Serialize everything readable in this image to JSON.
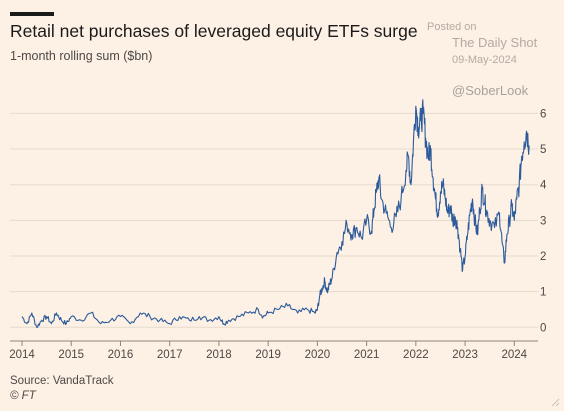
{
  "header": {
    "title": "Retail net purchases of leveraged equity ETFs surge",
    "subtitle": "1-month rolling sum ($bn)"
  },
  "watermark": {
    "posted": "Posted on",
    "brand": "The Daily Shot",
    "date": "09-May-2024",
    "handle": "@SoberLook"
  },
  "footer": {
    "source": "Source: VandaTrack",
    "credit": "© FT"
  },
  "colors": {
    "background": "#fdf1e5",
    "line": "#2c5a9a",
    "grid": "#e6dacd",
    "text": "#4d4845"
  },
  "chart_data": {
    "type": "line",
    "title": "Retail net purchases of leveraged equity ETFs surge",
    "subtitle": "1-month rolling sum ($bn)",
    "xlim": [
      2014.0,
      2024.4
    ],
    "ylim": [
      -0.3,
      6.6
    ],
    "x_ticks": [
      "2014",
      "2015",
      "2016",
      "2017",
      "2018",
      "2019",
      "2020",
      "2021",
      "2022",
      "2023",
      "2024"
    ],
    "y_ticks": [
      "0",
      "1",
      "2",
      "3",
      "4",
      "5",
      "6"
    ],
    "y_axis_side": "right",
    "grid": "horizontal",
    "series": [
      {
        "x": [
          2014.0,
          2014.1,
          2014.2,
          2014.3,
          2014.4,
          2014.5,
          2014.6,
          2014.7,
          2014.8,
          2014.9,
          2015.0,
          2015.2,
          2015.4,
          2015.6,
          2015.8,
          2016.0,
          2016.2,
          2016.4,
          2016.6,
          2016.8,
          2017.0,
          2017.2,
          2017.4,
          2017.6,
          2017.8,
          2018.0,
          2018.1,
          2018.2,
          2018.4,
          2018.6,
          2018.8,
          2018.9,
          2019.0,
          2019.2,
          2019.4,
          2019.6,
          2019.8,
          2019.95,
          2020.0,
          2020.05,
          2020.1,
          2020.15,
          2020.2,
          2020.25,
          2020.3,
          2020.4,
          2020.5,
          2020.6,
          2020.7,
          2020.8,
          2020.9,
          2021.0,
          2021.1,
          2021.15,
          2021.2,
          2021.25,
          2021.3,
          2021.4,
          2021.5,
          2021.6,
          2021.7,
          2021.8,
          2021.85,
          2021.9,
          2021.95,
          2022.0,
          2022.05,
          2022.1,
          2022.15,
          2022.2,
          2022.25,
          2022.3,
          2022.35,
          2022.4,
          2022.45,
          2022.5,
          2022.55,
          2022.6,
          2022.65,
          2022.7,
          2022.75,
          2022.8,
          2022.85,
          2022.9,
          2022.95,
          2023.0,
          2023.05,
          2023.1,
          2023.15,
          2023.2,
          2023.25,
          2023.3,
          2023.35,
          2023.4,
          2023.45,
          2023.5,
          2023.6,
          2023.7,
          2023.75,
          2023.8,
          2023.85,
          2023.9,
          2023.95,
          2024.0,
          2024.05,
          2024.1,
          2024.15,
          2024.2,
          2024.25,
          2024.3
        ],
        "y": [
          0.3,
          0.1,
          0.4,
          0.0,
          0.2,
          0.3,
          0.1,
          0.4,
          0.2,
          0.1,
          0.3,
          0.2,
          0.4,
          0.1,
          0.2,
          0.3,
          0.1,
          0.4,
          0.3,
          0.2,
          0.1,
          0.3,
          0.2,
          0.3,
          0.2,
          0.3,
          0.1,
          0.2,
          0.3,
          0.4,
          0.5,
          0.3,
          0.4,
          0.5,
          0.6,
          0.4,
          0.5,
          0.4,
          0.5,
          0.9,
          1.1,
          1.3,
          1.0,
          1.2,
          1.4,
          2.1,
          2.4,
          2.9,
          2.6,
          2.8,
          2.5,
          3.0,
          2.7,
          3.3,
          3.8,
          4.2,
          3.6,
          3.2,
          2.8,
          3.1,
          3.6,
          4.4,
          4.8,
          4.0,
          5.2,
          6.2,
          5.6,
          5.8,
          6.0,
          5.3,
          4.8,
          5.0,
          4.2,
          3.6,
          3.2,
          3.8,
          4.0,
          3.6,
          3.2,
          3.4,
          3.0,
          3.1,
          2.8,
          2.2,
          1.6,
          2.0,
          2.6,
          3.2,
          3.6,
          3.0,
          2.6,
          3.3,
          3.9,
          3.5,
          3.2,
          3.0,
          2.8,
          3.2,
          2.4,
          1.8,
          2.6,
          3.0,
          3.4,
          3.0,
          3.6,
          4.0,
          4.8,
          5.2,
          5.5,
          5.1
        ]
      }
    ]
  }
}
